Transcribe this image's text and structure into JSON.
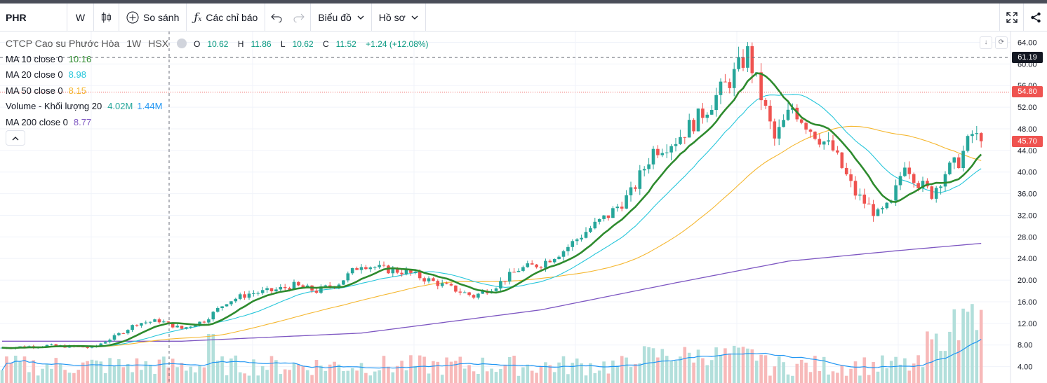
{
  "toolbar": {
    "symbol": "PHR",
    "interval": "W",
    "compare_label": "So sánh",
    "indicators_label": "Các chỉ báo",
    "chart_label": "Biểu đồ",
    "profile_label": "Hồ sơ"
  },
  "legend": {
    "title": "CTCP Cao su Phước Hòa",
    "interval": "1W",
    "exchange": "HSX",
    "ohlc": {
      "o": "10.62",
      "h": "11.86",
      "l": "10.62",
      "c": "11.52",
      "chg": "+1.24 (+12.08%)"
    },
    "rows": [
      {
        "label": "MA 10 close 0",
        "values": [
          "10.16"
        ],
        "colors": [
          "#2e8b2e"
        ]
      },
      {
        "label": "MA 20 close 0",
        "values": [
          "8.98"
        ],
        "colors": [
          "#26c6da"
        ]
      },
      {
        "label": "MA 50 close 0",
        "values": [
          "8.15"
        ],
        "colors": [
          "#f5b730"
        ]
      },
      {
        "label": "Volume - Khối lượng 20",
        "values": [
          "4.02M",
          "1.44M"
        ],
        "colors": [
          "#26a69a",
          "#2196f3"
        ]
      },
      {
        "label": "MA 200 close 0",
        "values": [
          "8.77"
        ],
        "colors": [
          "#7e57c2"
        ]
      }
    ]
  },
  "price_labels": {
    "crosshair": "61.19",
    "ref": "54.80",
    "last": "45.70"
  },
  "colors": {
    "up": "#26a69a",
    "down": "#ef5350",
    "ma10": "#2e8b2e",
    "ma20": "#26c6da",
    "ma50": "#f5b730",
    "ma200": "#7e57c2",
    "vol_ma": "#2196f3"
  },
  "chart_data": {
    "type": "candlestick",
    "y_ticks": [
      "4.00",
      "8.00",
      "12.00",
      "16.00",
      "20.00",
      "24.00",
      "28.00",
      "32.00",
      "36.00",
      "40.00",
      "44.00",
      "48.00",
      "52.00",
      "56.00",
      "60.00",
      "64.00"
    ],
    "ylim": [
      2,
      66
    ],
    "anchors": [
      [
        0,
        7.5
      ],
      [
        10,
        7.9
      ],
      [
        20,
        7.5
      ],
      [
        25,
        9.5
      ],
      [
        30,
        12
      ],
      [
        35,
        12.5
      ],
      [
        40,
        11
      ],
      [
        45,
        12.5
      ],
      [
        50,
        16
      ],
      [
        55,
        17.5
      ],
      [
        60,
        18
      ],
      [
        65,
        19
      ],
      [
        70,
        18
      ],
      [
        75,
        19.5
      ],
      [
        80,
        23
      ],
      [
        85,
        22
      ],
      [
        90,
        21.5
      ],
      [
        95,
        20
      ],
      [
        100,
        18.5
      ],
      [
        105,
        17
      ],
      [
        110,
        19
      ],
      [
        115,
        22
      ],
      [
        120,
        23
      ],
      [
        125,
        25.5
      ],
      [
        130,
        29
      ],
      [
        135,
        32
      ],
      [
        140,
        36
      ],
      [
        145,
        44
      ],
      [
        150,
        46
      ],
      [
        155,
        50
      ],
      [
        160,
        55
      ],
      [
        163,
        58
      ],
      [
        166,
        62
      ],
      [
        169,
        54
      ],
      [
        172,
        46
      ],
      [
        176,
        52
      ],
      [
        180,
        48
      ],
      [
        185,
        44
      ],
      [
        190,
        36
      ],
      [
        195,
        32
      ],
      [
        198,
        34
      ],
      [
        201,
        42
      ],
      [
        204,
        38
      ],
      [
        207,
        36
      ],
      [
        210,
        40
      ],
      [
        213,
        42
      ],
      [
        216,
        47
      ],
      [
        218,
        45.7
      ]
    ],
    "ma200": [
      [
        0,
        8.7
      ],
      [
        40,
        8.7
      ],
      [
        80,
        10.2
      ],
      [
        120,
        14.5
      ],
      [
        150,
        19.5
      ],
      [
        175,
        23.5
      ],
      [
        200,
        25.5
      ],
      [
        218,
        26.8
      ]
    ]
  }
}
